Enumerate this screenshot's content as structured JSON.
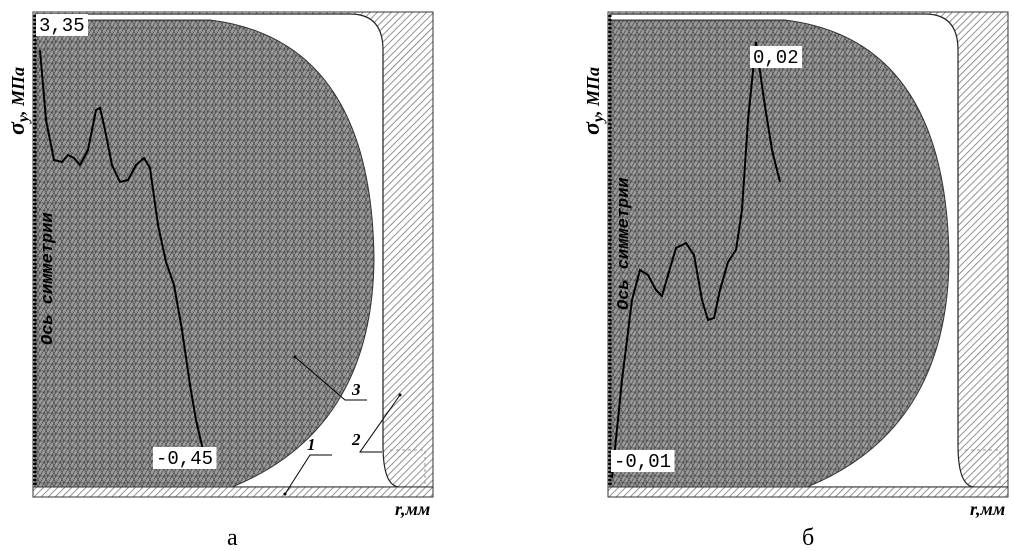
{
  "panels": [
    {
      "caption": "а",
      "y_axis_label": {
        "symbol": "σ",
        "subscript": "y",
        "unit": ", МПа"
      },
      "x_axis_label": "r,мм",
      "symmetry_label": "Ось симметрии",
      "max_label": "3,35",
      "min_label": "-0,45",
      "callouts": [
        "1",
        "2",
        "3"
      ]
    },
    {
      "caption": "б",
      "y_axis_label": {
        "symbol": "σ",
        "subscript": "y",
        "unit": ", МПа"
      },
      "x_axis_label": "r,мм",
      "symmetry_label": "Ось симметрии",
      "max_label": "0,02",
      "min_label": "-0,01"
    }
  ]
}
